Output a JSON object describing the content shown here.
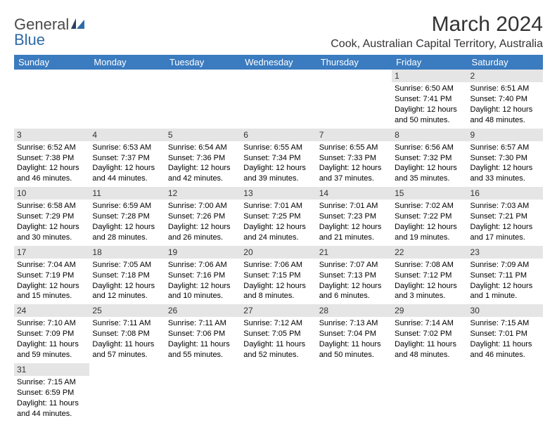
{
  "brand": {
    "part1": "General",
    "part2": "Blue"
  },
  "title": "March 2024",
  "location": "Cook, Australian Capital Territory, Australia",
  "colors": {
    "header_bg": "#3b7bbf",
    "header_fg": "#ffffff",
    "daynum_bg": "#e5e5e5",
    "text": "#333333",
    "logo_blue": "#2f6aa8"
  },
  "day_names": [
    "Sunday",
    "Monday",
    "Tuesday",
    "Wednesday",
    "Thursday",
    "Friday",
    "Saturday"
  ],
  "weeks": [
    [
      null,
      null,
      null,
      null,
      null,
      {
        "n": "1",
        "sr": "6:50 AM",
        "ss": "7:41 PM",
        "dl": "12 hours and 50 minutes."
      },
      {
        "n": "2",
        "sr": "6:51 AM",
        "ss": "7:40 PM",
        "dl": "12 hours and 48 minutes."
      }
    ],
    [
      {
        "n": "3",
        "sr": "6:52 AM",
        "ss": "7:38 PM",
        "dl": "12 hours and 46 minutes."
      },
      {
        "n": "4",
        "sr": "6:53 AM",
        "ss": "7:37 PM",
        "dl": "12 hours and 44 minutes."
      },
      {
        "n": "5",
        "sr": "6:54 AM",
        "ss": "7:36 PM",
        "dl": "12 hours and 42 minutes."
      },
      {
        "n": "6",
        "sr": "6:55 AM",
        "ss": "7:34 PM",
        "dl": "12 hours and 39 minutes."
      },
      {
        "n": "7",
        "sr": "6:55 AM",
        "ss": "7:33 PM",
        "dl": "12 hours and 37 minutes."
      },
      {
        "n": "8",
        "sr": "6:56 AM",
        "ss": "7:32 PM",
        "dl": "12 hours and 35 minutes."
      },
      {
        "n": "9",
        "sr": "6:57 AM",
        "ss": "7:30 PM",
        "dl": "12 hours and 33 minutes."
      }
    ],
    [
      {
        "n": "10",
        "sr": "6:58 AM",
        "ss": "7:29 PM",
        "dl": "12 hours and 30 minutes."
      },
      {
        "n": "11",
        "sr": "6:59 AM",
        "ss": "7:28 PM",
        "dl": "12 hours and 28 minutes."
      },
      {
        "n": "12",
        "sr": "7:00 AM",
        "ss": "7:26 PM",
        "dl": "12 hours and 26 minutes."
      },
      {
        "n": "13",
        "sr": "7:01 AM",
        "ss": "7:25 PM",
        "dl": "12 hours and 24 minutes."
      },
      {
        "n": "14",
        "sr": "7:01 AM",
        "ss": "7:23 PM",
        "dl": "12 hours and 21 minutes."
      },
      {
        "n": "15",
        "sr": "7:02 AM",
        "ss": "7:22 PM",
        "dl": "12 hours and 19 minutes."
      },
      {
        "n": "16",
        "sr": "7:03 AM",
        "ss": "7:21 PM",
        "dl": "12 hours and 17 minutes."
      }
    ],
    [
      {
        "n": "17",
        "sr": "7:04 AM",
        "ss": "7:19 PM",
        "dl": "12 hours and 15 minutes."
      },
      {
        "n": "18",
        "sr": "7:05 AM",
        "ss": "7:18 PM",
        "dl": "12 hours and 12 minutes."
      },
      {
        "n": "19",
        "sr": "7:06 AM",
        "ss": "7:16 PM",
        "dl": "12 hours and 10 minutes."
      },
      {
        "n": "20",
        "sr": "7:06 AM",
        "ss": "7:15 PM",
        "dl": "12 hours and 8 minutes."
      },
      {
        "n": "21",
        "sr": "7:07 AM",
        "ss": "7:13 PM",
        "dl": "12 hours and 6 minutes."
      },
      {
        "n": "22",
        "sr": "7:08 AM",
        "ss": "7:12 PM",
        "dl": "12 hours and 3 minutes."
      },
      {
        "n": "23",
        "sr": "7:09 AM",
        "ss": "7:11 PM",
        "dl": "12 hours and 1 minute."
      }
    ],
    [
      {
        "n": "24",
        "sr": "7:10 AM",
        "ss": "7:09 PM",
        "dl": "11 hours and 59 minutes."
      },
      {
        "n": "25",
        "sr": "7:11 AM",
        "ss": "7:08 PM",
        "dl": "11 hours and 57 minutes."
      },
      {
        "n": "26",
        "sr": "7:11 AM",
        "ss": "7:06 PM",
        "dl": "11 hours and 55 minutes."
      },
      {
        "n": "27",
        "sr": "7:12 AM",
        "ss": "7:05 PM",
        "dl": "11 hours and 52 minutes."
      },
      {
        "n": "28",
        "sr": "7:13 AM",
        "ss": "7:04 PM",
        "dl": "11 hours and 50 minutes."
      },
      {
        "n": "29",
        "sr": "7:14 AM",
        "ss": "7:02 PM",
        "dl": "11 hours and 48 minutes."
      },
      {
        "n": "30",
        "sr": "7:15 AM",
        "ss": "7:01 PM",
        "dl": "11 hours and 46 minutes."
      }
    ],
    [
      {
        "n": "31",
        "sr": "7:15 AM",
        "ss": "6:59 PM",
        "dl": "11 hours and 44 minutes."
      },
      null,
      null,
      null,
      null,
      null,
      null
    ]
  ],
  "labels": {
    "sunrise": "Sunrise:",
    "sunset": "Sunset:",
    "daylight": "Daylight:"
  }
}
